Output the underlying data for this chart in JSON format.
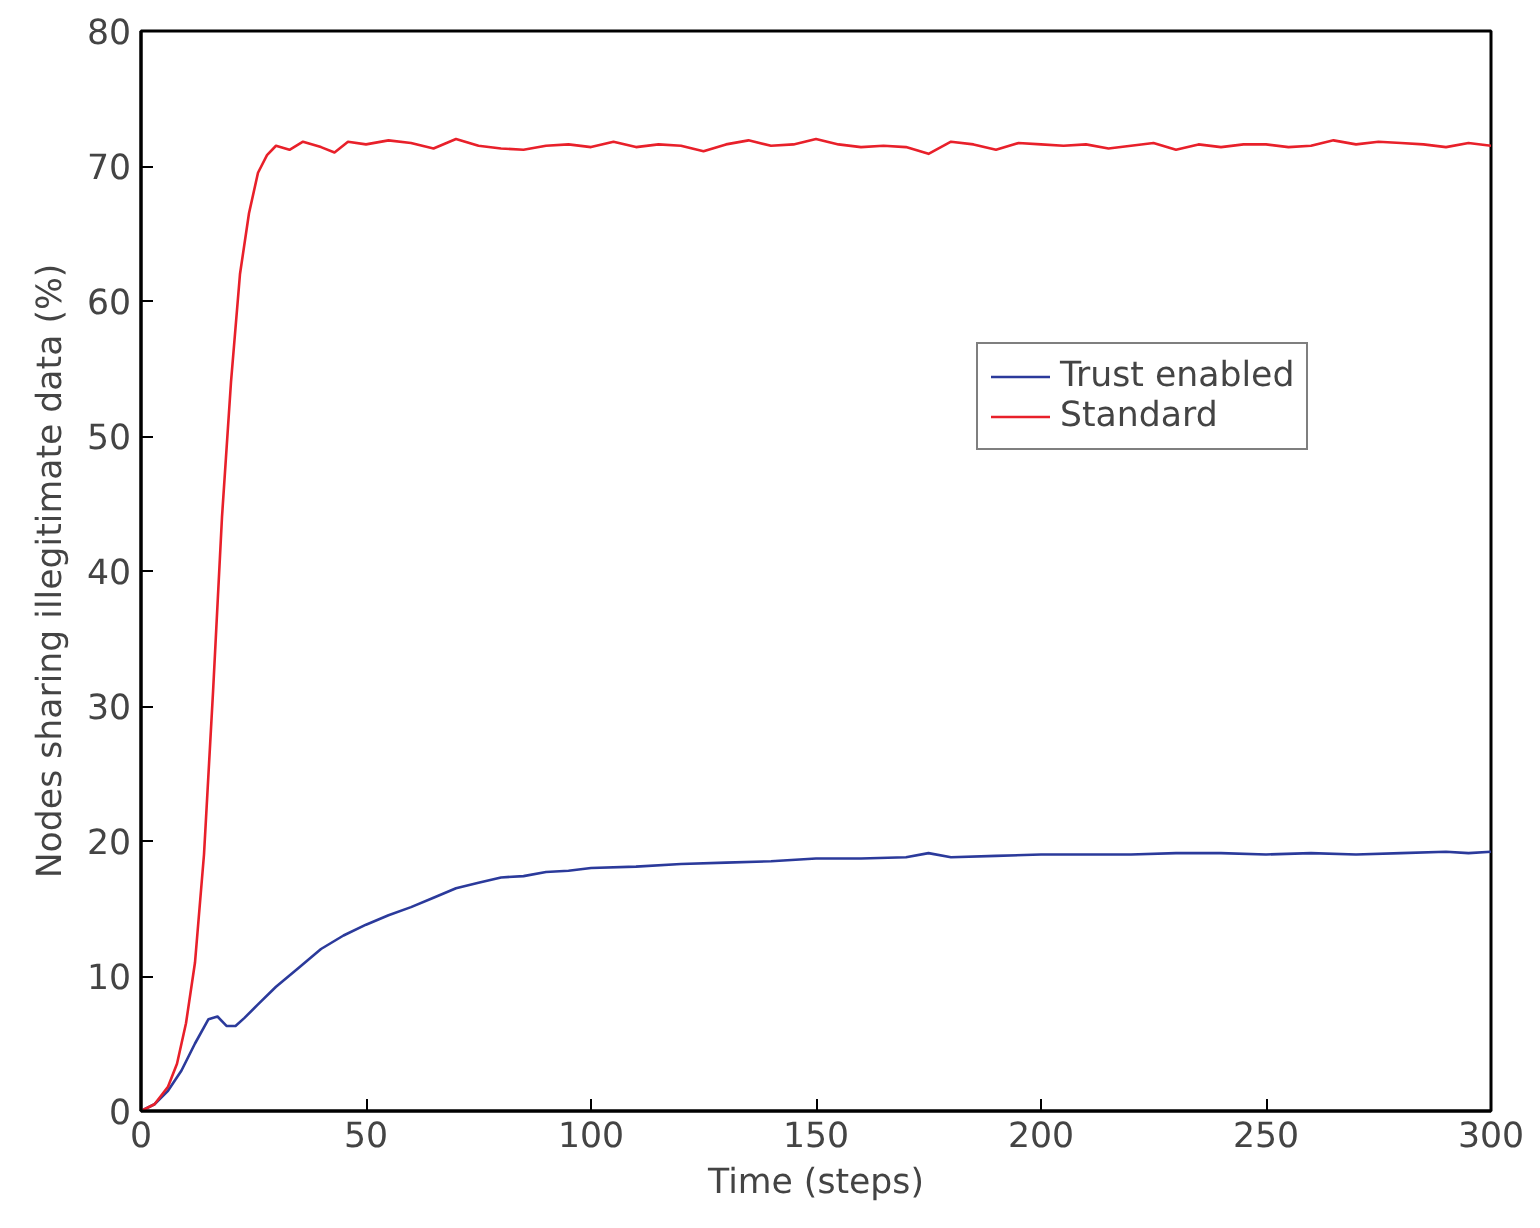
{
  "chart_data": {
    "type": "line",
    "xlabel": "Time (steps)",
    "ylabel": "Nodes sharing illegitimate data (%)",
    "xlim": [
      0,
      300
    ],
    "ylim": [
      0,
      80
    ],
    "xticks": [
      0,
      50,
      100,
      150,
      200,
      250,
      300
    ],
    "yticks": [
      0,
      10,
      20,
      30,
      40,
      50,
      60,
      70,
      80
    ],
    "grid": false,
    "legend": "right",
    "line_style": "solid",
    "series": [
      {
        "name": "Trust enabled",
        "color": "#2b3a9b",
        "x": [
          0,
          3,
          6,
          9,
          12,
          15,
          17,
          19,
          21,
          23,
          26,
          30,
          35,
          40,
          45,
          50,
          55,
          60,
          65,
          70,
          75,
          80,
          85,
          90,
          95,
          100,
          110,
          120,
          130,
          140,
          150,
          160,
          170,
          175,
          180,
          190,
          200,
          210,
          220,
          230,
          240,
          250,
          260,
          270,
          280,
          290,
          295,
          300
        ],
        "values": [
          0,
          0.5,
          1.5,
          3,
          5,
          6.8,
          7,
          6.3,
          6.3,
          6.9,
          7.9,
          9.2,
          10.6,
          12,
          13,
          13.8,
          14.5,
          15.1,
          15.8,
          16.5,
          16.9,
          17.3,
          17.4,
          17.7,
          17.8,
          18,
          18.1,
          18.3,
          18.4,
          18.5,
          18.7,
          18.7,
          18.8,
          19.1,
          18.8,
          18.9,
          19,
          19,
          19,
          19.1,
          19.1,
          19,
          19.1,
          19,
          19.1,
          19.2,
          19.1,
          19.2
        ]
      },
      {
        "name": "Standard",
        "color": "#e8202a",
        "x": [
          0,
          3,
          6,
          8,
          10,
          12,
          14,
          16,
          18,
          20,
          22,
          24,
          26,
          28,
          30,
          33,
          36,
          40,
          43,
          46,
          50,
          55,
          60,
          65,
          70,
          75,
          80,
          85,
          90,
          95,
          100,
          105,
          110,
          115,
          120,
          125,
          130,
          135,
          140,
          145,
          150,
          155,
          160,
          165,
          170,
          175,
          180,
          185,
          190,
          195,
          200,
          205,
          210,
          215,
          220,
          225,
          230,
          235,
          240,
          245,
          250,
          255,
          260,
          265,
          270,
          275,
          280,
          285,
          290,
          295,
          300
        ],
        "values": [
          0,
          0.5,
          1.8,
          3.5,
          6.5,
          11,
          19,
          31,
          44,
          54,
          62,
          66.5,
          69.5,
          70.8,
          71.5,
          71.2,
          71.8,
          71.4,
          71,
          71.8,
          71.6,
          71.9,
          71.7,
          71.3,
          72,
          71.5,
          71.3,
          71.2,
          71.5,
          71.6,
          71.4,
          71.8,
          71.4,
          71.6,
          71.5,
          71.1,
          71.6,
          71.9,
          71.5,
          71.6,
          72,
          71.6,
          71.4,
          71.5,
          71.4,
          70.9,
          71.8,
          71.6,
          71.2,
          71.7,
          71.6,
          71.5,
          71.6,
          71.3,
          71.5,
          71.7,
          71.2,
          71.6,
          71.4,
          71.6,
          71.6,
          71.4,
          71.5,
          71.9,
          71.6,
          71.8,
          71.7,
          71.6,
          71.4,
          71.7,
          71.5
        ]
      }
    ]
  }
}
